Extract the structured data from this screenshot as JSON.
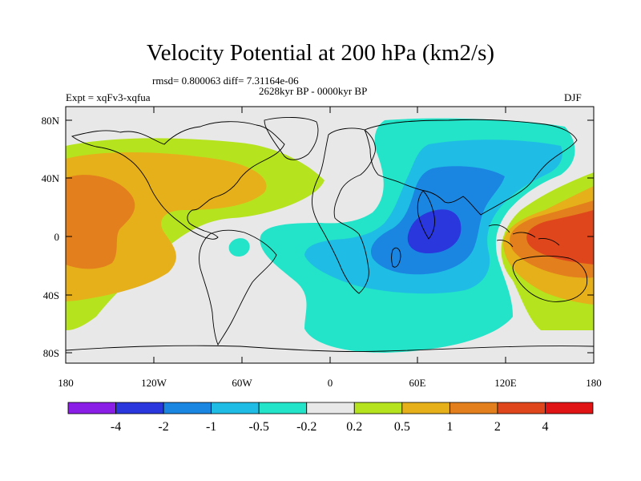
{
  "title": "Velocity Potential at 200 hPa (km2/s)",
  "stats_line": "rmsd= 0.800063 diff= 7.31164e-06",
  "period_line": "2628kyr BP - 0000kyr BP",
  "experiment_line": "Expt = xqFv3-xqfua",
  "season": "DJF",
  "latitude_labels": [
    "80N",
    "40N",
    "0",
    "40S",
    "80S"
  ],
  "longitude_labels": [
    "180",
    "120W",
    "60W",
    "0",
    "60E",
    "120E",
    "180"
  ],
  "colorbar": {
    "labels": [
      "-4",
      "-2",
      "-1",
      "-0.5",
      "-0.2",
      "0.2",
      "0.5",
      "1",
      "2",
      "4"
    ],
    "colors": [
      "#8a1ee6",
      "#2a37dd",
      "#1b86e2",
      "#1fbde5",
      "#23e3c8",
      "#e8e8e8",
      "#b5e41e",
      "#e6b01a",
      "#e37f1c",
      "#e0461c",
      "#e01414"
    ]
  },
  "colors": {
    "land_outline": "#000000",
    "background": "#e8e8e8"
  }
}
